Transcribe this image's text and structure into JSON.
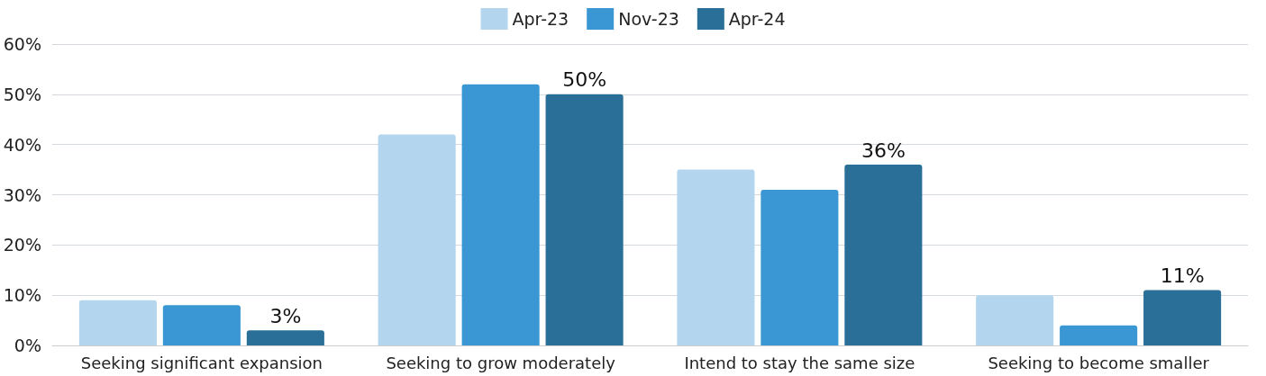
{
  "chart_data": {
    "type": "bar",
    "categories": [
      "Seeking significant expansion",
      "Seeking to grow moderately",
      "Intend to stay the same size",
      "Seeking to become smaller"
    ],
    "series": [
      {
        "name": "Apr-23",
        "color": "#b3d6ee",
        "values": [
          9,
          42,
          35,
          10
        ]
      },
      {
        "name": "Nov-23",
        "color": "#3a97d4",
        "values": [
          8,
          52,
          31,
          4
        ]
      },
      {
        "name": "Apr-24",
        "color": "#2a6f98",
        "values": [
          3,
          50,
          36,
          11
        ],
        "value_labels": [
          "3%",
          "50%",
          "36%",
          "11%"
        ]
      }
    ],
    "ylim": [
      0,
      60
    ],
    "yticks": [
      {
        "value": 0,
        "label": "0%"
      },
      {
        "value": 10,
        "label": "10%"
      },
      {
        "value": 20,
        "label": "20%"
      },
      {
        "value": 30,
        "label": "30%"
      },
      {
        "value": 40,
        "label": "40%"
      },
      {
        "value": 50,
        "label": "50%"
      },
      {
        "value": 60,
        "label": "60%"
      }
    ],
    "grid": "y",
    "legend": "top"
  }
}
